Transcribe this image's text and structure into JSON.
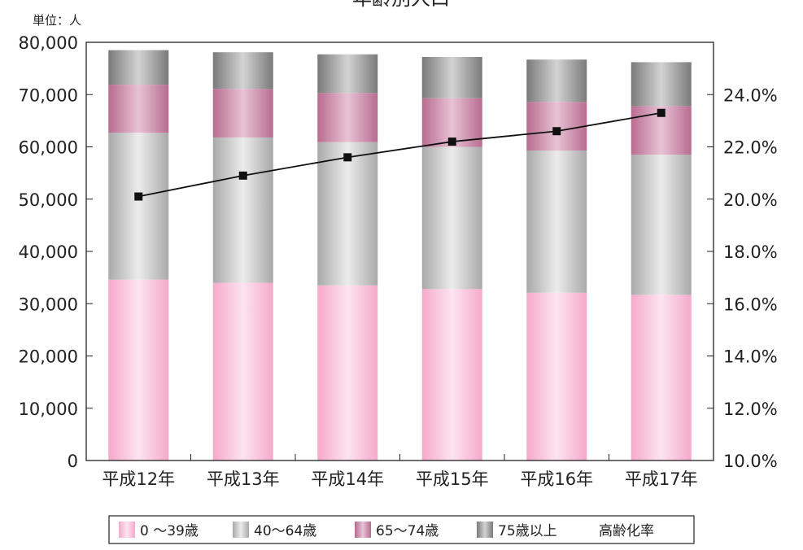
{
  "chart_data": {
    "type": "bar",
    "stacked": true,
    "title": "年齢別人口",
    "unit_label": "単位：人",
    "categories": [
      "平成12年",
      "平成13年",
      "平成14年",
      "平成15年",
      "平成16年",
      "平成17年"
    ],
    "series": [
      {
        "name": "0 〜39歳",
        "values": [
          34600,
          34000,
          33500,
          32800,
          32100,
          31700
        ],
        "color": "#f2b0cf"
      },
      {
        "name": "40〜64歳",
        "values": [
          28100,
          27800,
          27400,
          27200,
          27200,
          26800
        ],
        "color": "#bdbdbd"
      },
      {
        "name": "65〜74歳",
        "values": [
          9200,
          9300,
          9400,
          9300,
          9300,
          9300
        ],
        "color": "#c77fa0"
      },
      {
        "name": "75歳以上",
        "values": [
          6600,
          7000,
          7400,
          7900,
          8100,
          8400
        ],
        "color": "#8e8e8e"
      }
    ],
    "line_series": {
      "name": "高齢化率",
      "values": [
        20.1,
        20.9,
        21.6,
        22.2,
        22.6,
        23.3
      ],
      "axis": "right",
      "color": "#111111"
    },
    "left_axis": {
      "ylim": [
        0,
        80000
      ],
      "ticks": [
        0,
        10000,
        20000,
        30000,
        40000,
        50000,
        60000,
        70000,
        80000
      ],
      "tick_labels": [
        "0",
        "10,000",
        "20,000",
        "30,000",
        "40,000",
        "50,000",
        "60,000",
        "70,000",
        "80,000"
      ]
    },
    "right_axis": {
      "ylim": [
        10,
        26
      ],
      "ticks": [
        10,
        12,
        14,
        16,
        18,
        20,
        22,
        24
      ],
      "tick_labels": [
        "10.0%",
        "12.0%",
        "14.0%",
        "16.0%",
        "18.0%",
        "20.0%",
        "22.0%",
        "24.0%"
      ]
    },
    "legend_position": "bottom",
    "grid": false
  }
}
